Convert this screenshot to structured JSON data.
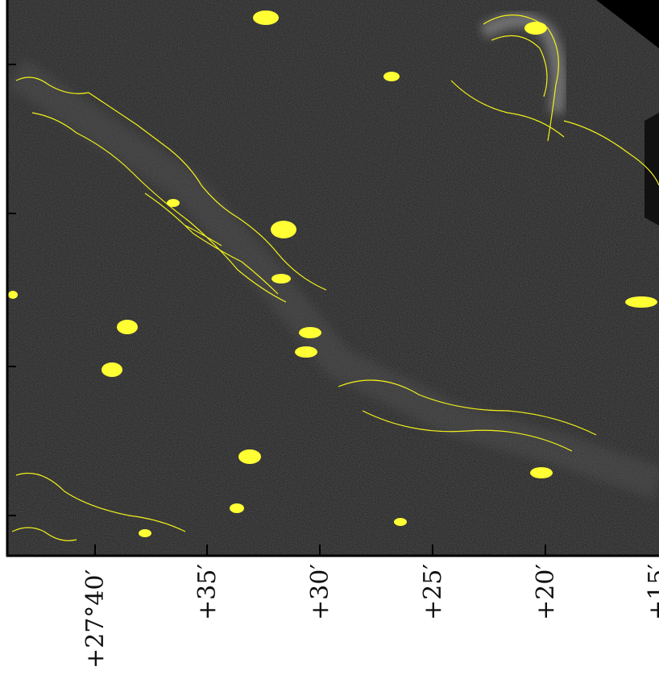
{
  "image": {
    "description_colors": {
      "background": "#1c1c1c",
      "contour": "#f2f21a",
      "source": "#ffff33",
      "axis": "#000000",
      "page": "#ffffff"
    }
  },
  "axis": {
    "ticks": [
      "+27°40′",
      "+35′",
      "+30′",
      "+25′",
      "+20′",
      "+15′"
    ]
  }
}
